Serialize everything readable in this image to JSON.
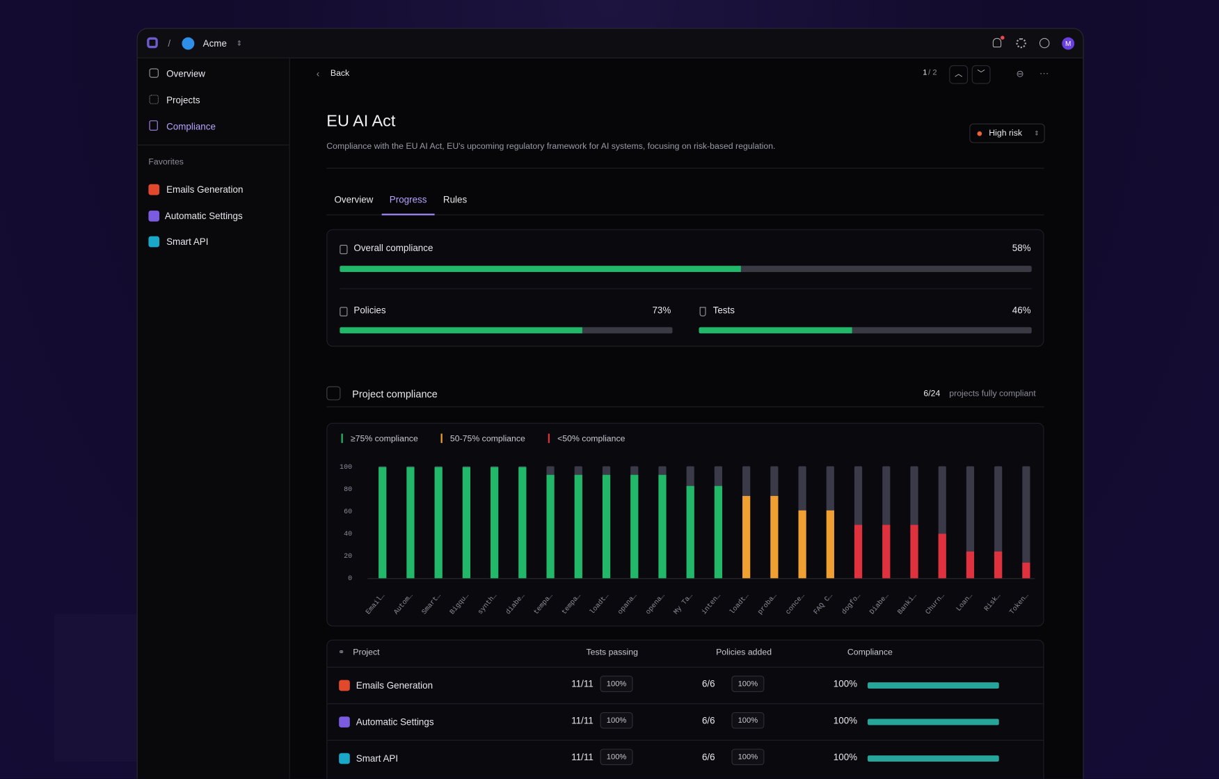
{
  "topbar": {
    "org": "Acme",
    "avatar": "M"
  },
  "sidebar": {
    "nav": [
      "Overview",
      "Projects",
      "Compliance"
    ],
    "favorites_title": "Favorites",
    "favorites": [
      "Emails Generation",
      "Automatic Settings",
      "Smart API"
    ]
  },
  "toolbar": {
    "back": "Back",
    "page_current": "1",
    "page_total": "/ 2"
  },
  "header": {
    "title": "EU AI Act",
    "description": "Compliance with the EU AI Act, EU's upcoming regulatory framework for AI systems, focusing on risk-based regulation.",
    "risk": "High risk"
  },
  "tabs": [
    "Overview",
    "Progress",
    "Rules"
  ],
  "summary": {
    "overall": {
      "label": "Overall compliance",
      "value": 58,
      "value_label": "58%"
    },
    "policies": {
      "label": "Policies",
      "value": 73,
      "value_label": "73%"
    },
    "tests": {
      "label": "Tests",
      "value": 46,
      "value_label": "46%"
    }
  },
  "project_compliance": {
    "title": "Project compliance",
    "count": "6/24",
    "count_note": "projects fully compliant"
  },
  "chart_data": {
    "type": "bar",
    "legend": [
      {
        "label": "≥75% compliance",
        "color": "#22b86a"
      },
      {
        "label": "50-75% compliance",
        "color": "#f0a030"
      },
      {
        "label": "<50% compliance",
        "color": "#e0323e"
      }
    ],
    "categories": [
      "Email…",
      "Autom…",
      "Smart…",
      "Bigqu…",
      "synth…",
      "diabe…",
      "tempa…",
      "tempa…",
      "loadt…",
      "opana…",
      "opena…",
      "My Ta…",
      "inten…",
      "loadt…",
      "proba…",
      "conce…",
      "FAQ C…",
      "dogfo…",
      "Diabe…",
      "Banki…",
      "Churn…",
      "Loan…",
      "Risk…",
      "Token…"
    ],
    "values": [
      100,
      100,
      100,
      100,
      100,
      100,
      93,
      93,
      93,
      93,
      93,
      83,
      83,
      74,
      74,
      61,
      61,
      48,
      48,
      48,
      40,
      24,
      24,
      14
    ],
    "colors": [
      "#22b86a",
      "#22b86a",
      "#22b86a",
      "#22b86a",
      "#22b86a",
      "#22b86a",
      "#22b86a",
      "#22b86a",
      "#22b86a",
      "#22b86a",
      "#22b86a",
      "#22b86a",
      "#22b86a",
      "#f0a030",
      "#f0a030",
      "#f0a030",
      "#f0a030",
      "#e0323e",
      "#e0323e",
      "#e0323e",
      "#e0323e",
      "#e0323e",
      "#e0323e",
      "#e0323e"
    ],
    "ylim": [
      0,
      100
    ],
    "yticks": [
      0,
      20,
      40,
      60,
      80,
      100
    ]
  },
  "table": {
    "headers": [
      "Project",
      "Tests passing",
      "Policies added",
      "Compliance"
    ],
    "rows": [
      {
        "name": "Emails Generation",
        "tests": "11/11",
        "tests_pct": "100%",
        "policies": "6/6",
        "policies_pct": "100%",
        "compliance": 100,
        "compliance_label": "100%"
      },
      {
        "name": "Automatic Settings",
        "tests": "11/11",
        "tests_pct": "100%",
        "policies": "6/6",
        "policies_pct": "100%",
        "compliance": 100,
        "compliance_label": "100%"
      },
      {
        "name": "Smart API",
        "tests": "11/11",
        "tests_pct": "100%",
        "policies": "6/6",
        "policies_pct": "100%",
        "compliance": 100,
        "compliance_label": "100%"
      }
    ]
  }
}
